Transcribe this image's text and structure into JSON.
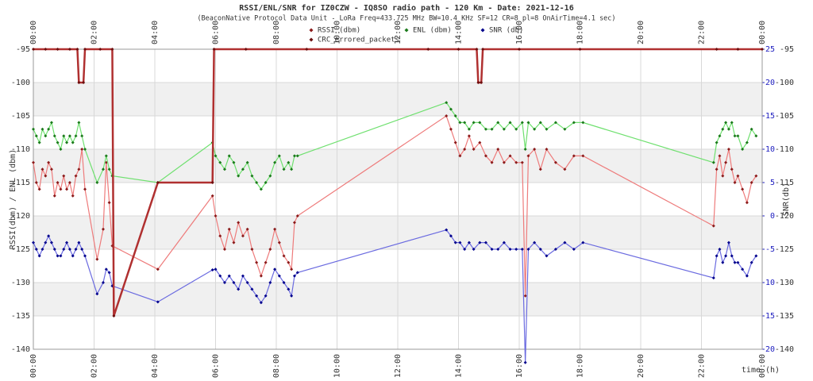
{
  "chart_data": {
    "type": "line",
    "title": "RSSI/ENL/SNR for IZ0CZW - IQ8SO radio path - 120 Km - Date: 2021-12-16",
    "subtitle": "(BeaconNative Protocol Data Unit - LoRa Freq=433.725 MHz BW=10.4 KHz SF=12 CR=8 pl=8 OnAirTime=4.1 sec)",
    "y_label": "RSSI(dbm) / ENL (dbm)",
    "y2_label": "SNR(db)",
    "x_label": "time (h)",
    "xlim": [
      0,
      24
    ],
    "xticks": [
      {
        "value": 0,
        "label": "00:00"
      },
      {
        "value": 2,
        "label": "02:00"
      },
      {
        "value": 4,
        "label": "04:00"
      },
      {
        "value": 6,
        "label": "06:00"
      },
      {
        "value": 8,
        "label": "08:00"
      },
      {
        "value": 10,
        "label": "10:00"
      },
      {
        "value": 12,
        "label": "12:00"
      },
      {
        "value": 14,
        "label": "14:00"
      },
      {
        "value": 16,
        "label": "16:00"
      },
      {
        "value": 18,
        "label": "18:00"
      },
      {
        "value": 20,
        "label": "20:00"
      },
      {
        "value": 22,
        "label": "22:00"
      },
      {
        "value": 24,
        "label": "00:00"
      }
    ],
    "ylim": [
      -140,
      -95
    ],
    "yticks": [
      -95,
      -100,
      -105,
      -110,
      -115,
      -120,
      -125,
      -130,
      -135,
      -140
    ],
    "y2lim": [
      -20,
      25
    ],
    "y2ticks": [
      25,
      20,
      15,
      10,
      5,
      0,
      -5,
      -10,
      -15,
      -20
    ],
    "grid": true,
    "series": [
      {
        "name": "RSSI (dbm)",
        "color": "#ee7b7b",
        "marker_color": "#8b1a1a",
        "x": [
          0.0,
          0.1,
          0.2,
          0.3,
          0.4,
          0.5,
          0.6,
          0.7,
          0.8,
          0.9,
          1.0,
          1.1,
          1.2,
          1.3,
          1.4,
          1.5,
          1.6,
          1.7,
          2.1,
          2.3,
          2.4,
          2.5,
          2.6,
          4.1,
          5.9,
          6.0,
          6.15,
          6.3,
          6.45,
          6.6,
          6.75,
          6.9,
          7.05,
          7.2,
          7.35,
          7.5,
          7.65,
          7.8,
          7.95,
          8.1,
          8.25,
          8.4,
          8.5,
          8.6,
          8.7,
          13.6,
          13.75,
          13.9,
          14.05,
          14.2,
          14.35,
          14.5,
          14.7,
          14.9,
          15.1,
          15.3,
          15.5,
          15.7,
          15.9,
          16.1,
          16.2,
          16.3,
          16.5,
          16.7,
          16.9,
          17.2,
          17.5,
          17.8,
          18.1,
          22.4,
          22.5,
          22.6,
          22.7,
          22.8,
          22.9,
          23.0,
          23.1,
          23.2,
          23.35,
          23.5,
          23.65,
          23.8
        ],
        "values": [
          -112,
          -115,
          -116,
          -113,
          -114,
          -112,
          -113,
          -117,
          -115,
          -116,
          -114,
          -116,
          -115,
          -117,
          -114,
          -113,
          -110,
          -116,
          -126.5,
          -122,
          -112,
          -118,
          -124.5,
          -128,
          -117,
          -120,
          -123,
          -125,
          -122,
          -124,
          -121,
          -123,
          -122,
          -125,
          -127,
          -129,
          -127,
          -125,
          -122,
          -124,
          -126,
          -127,
          -128,
          -121,
          -120,
          -105,
          -107,
          -109,
          -111,
          -110,
          -108,
          -110,
          -109,
          -111,
          -112,
          -110,
          -112,
          -111,
          -112,
          -112,
          -132,
          -111,
          -110,
          -113,
          -110,
          -112,
          -113,
          -111,
          -111,
          -121.5,
          -113,
          -111,
          -114,
          -112,
          -110,
          -113,
          -115,
          -114,
          -116,
          -118,
          -115,
          -114
        ]
      },
      {
        "name": "ENL (dbm)",
        "color": "#6fe06f",
        "marker_color": "#1a7a1a",
        "x": [
          0.0,
          0.1,
          0.2,
          0.3,
          0.4,
          0.5,
          0.6,
          0.7,
          0.8,
          0.9,
          1.0,
          1.1,
          1.2,
          1.3,
          1.4,
          1.5,
          1.6,
          1.7,
          2.1,
          2.3,
          2.4,
          2.5,
          2.6,
          4.1,
          5.9,
          6.0,
          6.15,
          6.3,
          6.45,
          6.6,
          6.75,
          6.9,
          7.05,
          7.2,
          7.35,
          7.5,
          7.65,
          7.8,
          7.95,
          8.1,
          8.25,
          8.4,
          8.5,
          8.6,
          8.7,
          13.6,
          13.75,
          13.9,
          14.05,
          14.2,
          14.35,
          14.5,
          14.7,
          14.9,
          15.1,
          15.3,
          15.5,
          15.7,
          15.9,
          16.1,
          16.2,
          16.3,
          16.5,
          16.7,
          16.9,
          17.2,
          17.5,
          17.8,
          18.1,
          22.4,
          22.5,
          22.6,
          22.7,
          22.8,
          22.9,
          23.0,
          23.1,
          23.2,
          23.35,
          23.5,
          23.65,
          23.8
        ],
        "values": [
          -107,
          -108,
          -109,
          -107,
          -108,
          -107,
          -106,
          -108,
          -109,
          -110,
          -108,
          -109,
          -108,
          -109,
          -108,
          -106,
          -108,
          -110,
          -115,
          -113,
          -111,
          -113,
          -114,
          -115,
          -109,
          -111,
          -112,
          -113,
          -111,
          -112,
          -114,
          -113,
          -112,
          -114,
          -115,
          -116,
          -115,
          -114,
          -112,
          -111,
          -113,
          -112,
          -113,
          -111,
          -111,
          -103,
          -104,
          -105,
          -106,
          -106,
          -107,
          -106,
          -106,
          -107,
          -107,
          -106,
          -107,
          -106,
          -107,
          -106,
          -110,
          -106,
          -107,
          -106,
          -107,
          -106,
          -107,
          -106,
          -106,
          -112,
          -109,
          -108,
          -107,
          -106,
          -107,
          -106,
          -108,
          -108,
          -110,
          -109,
          -107,
          -108
        ]
      },
      {
        "name": "SNR (db)",
        "color": "#6b6be0",
        "marker_color": "#00008b",
        "axis": "y2",
        "x": [
          0.0,
          0.1,
          0.2,
          0.3,
          0.4,
          0.5,
          0.6,
          0.7,
          0.8,
          0.9,
          1.0,
          1.1,
          1.2,
          1.3,
          1.4,
          1.5,
          1.6,
          1.7,
          2.1,
          2.3,
          2.4,
          2.5,
          2.6,
          4.1,
          5.9,
          6.0,
          6.15,
          6.3,
          6.45,
          6.6,
          6.75,
          6.9,
          7.05,
          7.2,
          7.35,
          7.5,
          7.65,
          7.8,
          7.95,
          8.1,
          8.25,
          8.4,
          8.5,
          8.6,
          8.7,
          13.6,
          13.75,
          13.9,
          14.05,
          14.2,
          14.35,
          14.5,
          14.7,
          14.9,
          15.1,
          15.3,
          15.5,
          15.7,
          15.9,
          16.1,
          16.2,
          16.3,
          16.5,
          16.7,
          16.9,
          17.2,
          17.5,
          17.8,
          18.1,
          22.4,
          22.5,
          22.6,
          22.7,
          22.8,
          22.9,
          23.0,
          23.1,
          23.2,
          23.35,
          23.5,
          23.65,
          23.8
        ],
        "values": [
          -4,
          -5,
          -6,
          -5,
          -4,
          -3,
          -4,
          -5,
          -6,
          -6,
          -5,
          -4,
          -5,
          -6,
          -5,
          -4,
          -5,
          -6,
          -11.7,
          -10,
          -8,
          -8.5,
          -10.5,
          -12.9,
          -8.1,
          -8,
          -9,
          -10,
          -9,
          -10,
          -11,
          -9,
          -10,
          -11,
          -12,
          -13,
          -12,
          -10,
          -8,
          -9,
          -10,
          -11,
          -12,
          -9,
          -8.5,
          -2.1,
          -3,
          -4,
          -4,
          -5,
          -4,
          -5,
          -4,
          -4,
          -5,
          -5,
          -4,
          -5,
          -5,
          -5,
          -22,
          -5,
          -4,
          -5,
          -6,
          -5,
          -4,
          -5,
          -4,
          -9.3,
          -6,
          -5,
          -7,
          -6,
          -4,
          -6,
          -7,
          -7,
          -8,
          -9,
          -7,
          -6
        ]
      },
      {
        "name": "CRC_errored_packets",
        "color": "#b03030",
        "marker_color": "#6b0f0f",
        "x": [
          0.0,
          0.4,
          0.8,
          1.2,
          1.45,
          1.5,
          1.65,
          1.7,
          2.2,
          2.6,
          2.65,
          4.1,
          5.9,
          5.95,
          7.0,
          9.0,
          13.0,
          14.0,
          14.6,
          14.65,
          14.75,
          14.8,
          16.0,
          18.0,
          22.5,
          23.2,
          24.0
        ],
        "values": [
          -95,
          -95,
          -95,
          -95,
          -95,
          -100,
          -100,
          -95,
          -95,
          -95,
          -135,
          -115,
          -115,
          -95,
          -95,
          -95,
          -95,
          -95,
          -95,
          -100,
          -100,
          -95,
          -95,
          -95,
          -95,
          -95,
          -95
        ]
      }
    ]
  }
}
